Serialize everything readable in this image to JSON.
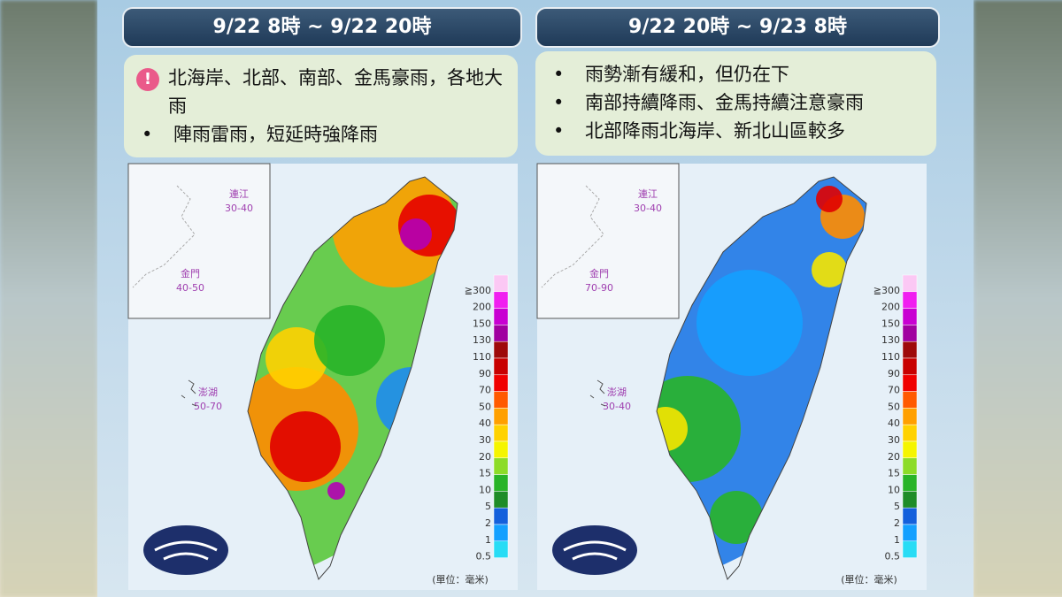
{
  "panels": [
    {
      "header": "9/22 8時 ~ 9/22 20時",
      "bullets": [
        "北海岸、北部、南部、金馬豪雨，各地大雨",
        "陣雨雷雨，短延時強降雨"
      ],
      "insets": {
        "matsu": {
          "name": "連江",
          "range": "30-40"
        },
        "kinmen": {
          "name": "金門",
          "range": "40-50"
        },
        "penghu": {
          "name": "澎湖",
          "range": "50-70"
        }
      }
    },
    {
      "header": "9/22 20時 ~ 9/23 8時",
      "bullets": [
        "雨勢漸有緩和，但仍在下",
        "南部持續降雨、金馬持續注意豪雨",
        "北部降雨北海岸、新北山區較多"
      ],
      "insets": {
        "matsu": {
          "name": "連江",
          "range": "30-40"
        },
        "kinmen": {
          "name": "金門",
          "range": "70-90"
        },
        "penghu": {
          "name": "澎湖",
          "range": "30-40"
        }
      }
    }
  ],
  "legend": {
    "labels": [
      "≧300",
      "200",
      "150",
      "130",
      "110",
      "90",
      "70",
      "50",
      "40",
      "30",
      "20",
      "15",
      "10",
      "5",
      "2",
      "1",
      "0.5"
    ],
    "colors": [
      "#fbc8f4",
      "#f01ef0",
      "#c800d2",
      "#a000a0",
      "#9e0a0a",
      "#c80000",
      "#f00000",
      "#ff5a00",
      "#ffa000",
      "#ffd200",
      "#f5f500",
      "#8cdc28",
      "#28b428",
      "#1e8c28",
      "#1460dc",
      "#14a0ff",
      "#28dcf5"
    ],
    "unit": "(單位：毫米)"
  }
}
